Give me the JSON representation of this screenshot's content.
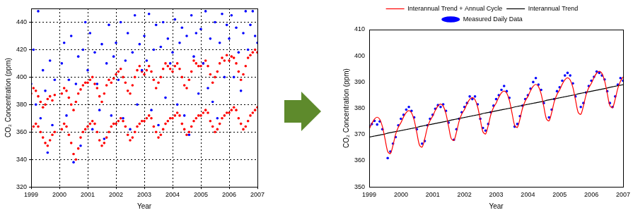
{
  "chart_data": [
    {
      "type": "scatter",
      "x_label": "Year",
      "y_label": "CO₂ Concentration (ppm)",
      "x": [
        1999,
        1999.083,
        1999.167,
        1999.25,
        1999.333,
        1999.417,
        1999.5,
        1999.583,
        1999.667,
        1999.75,
        1999.833,
        1999.917,
        2000,
        2000.083,
        2000.167,
        2000.25,
        2000.333,
        2000.417,
        2000.5,
        2000.583,
        2000.667,
        2000.75,
        2000.833,
        2000.917,
        2001,
        2001.083,
        2001.167,
        2001.25,
        2001.333,
        2001.417,
        2001.5,
        2001.583,
        2001.667,
        2001.75,
        2001.833,
        2001.917,
        2002,
        2002.083,
        2002.167,
        2002.25,
        2002.333,
        2002.417,
        2002.5,
        2002.583,
        2002.667,
        2002.75,
        2002.833,
        2002.917,
        2003,
        2003.083,
        2003.167,
        2003.25,
        2003.333,
        2003.417,
        2003.5,
        2003.583,
        2003.667,
        2003.75,
        2003.833,
        2003.917,
        2004,
        2004.083,
        2004.167,
        2004.25,
        2004.333,
        2004.417,
        2004.5,
        2004.583,
        2004.667,
        2004.75,
        2004.833,
        2004.917,
        2005,
        2005.083,
        2005.167,
        2005.25,
        2005.333,
        2005.417,
        2005.5,
        2005.583,
        2005.667,
        2005.75,
        2005.833,
        2005.917,
        2006,
        2006.083,
        2006.167,
        2006.25,
        2006.333,
        2006.417,
        2006.5,
        2006.583,
        2006.667,
        2006.75,
        2006.833,
        2006.917,
        2007
      ],
      "series": [
        {
          "color": "#0000ff",
          "marker": "circle",
          "values": [
            395,
            420,
            380,
            448,
            370,
            405,
            390,
            345,
            412,
            365,
            398,
            null,
            null,
            410,
            425,
            372,
            398,
            430,
            338,
            395,
            415,
            350,
            420,
            440,
            405,
            432,
            362,
            418,
            395,
            376,
            424,
            355,
            410,
            438,
            372,
            415,
            425,
            398,
            440,
            370,
            412,
            432,
            362,
            418,
            445,
            380,
            424,
            405,
            430,
            412,
            446,
            376,
            420,
            438,
            365,
            422,
            440,
            385,
            428,
            410,
            418,
            442,
            380,
            425,
            436,
            372,
            430,
            358,
            445,
            415,
            432,
            388,
            435,
            410,
            448,
            392,
            428,
            382,
            440,
            370,
            425,
            446,
            400,
            438,
            428,
            445,
            400,
            436,
            418,
            390,
            432,
            448,
            420,
            438,
            448,
            430,
            425
          ]
        },
        {
          "color": "#ff0000",
          "marker": "circle",
          "values": [
            388,
            392,
            390,
            386,
            382,
            378,
            380,
            384,
            386,
            383,
            387,
            null,
            null,
            388,
            392,
            390,
            385,
            380,
            376,
            382,
            388,
            391,
            394,
            396,
            396,
            398,
            400,
            395,
            392,
            386,
            382,
            388,
            394,
            398,
            396,
            399,
            402,
            404,
            406,
            400,
            396,
            390,
            388,
            394,
            400,
            405,
            408,
            404,
            402,
            405,
            408,
            404,
            398,
            392,
            396,
            400,
            406,
            410,
            408,
            406,
            404,
            408,
            410,
            406,
            400,
            394,
            392,
            398,
            404,
            412,
            410,
            408,
            408,
            410,
            412,
            408,
            402,
            396,
            400,
            404,
            410,
            414,
            412,
            416,
            412,
            415,
            414,
            410,
            404,
            398,
            402,
            408,
            414,
            416,
            418,
            420,
            418
          ]
        },
        {
          "color": "#ff0000",
          "marker": "circle",
          "values": [
            362,
            364,
            366,
            364,
            360,
            356,
            352,
            350,
            354,
            358,
            360,
            null,
            null,
            362,
            366,
            364,
            358,
            352,
            344,
            340,
            348,
            356,
            360,
            362,
            364,
            366,
            368,
            366,
            360,
            354,
            350,
            352,
            356,
            360,
            364,
            366,
            366,
            368,
            370,
            368,
            364,
            358,
            354,
            356,
            360,
            364,
            366,
            368,
            368,
            370,
            372,
            370,
            364,
            360,
            356,
            358,
            362,
            366,
            368,
            370,
            370,
            372,
            374,
            372,
            366,
            362,
            358,
            360,
            364,
            368,
            370,
            372,
            372,
            374,
            376,
            374,
            368,
            364,
            360,
            362,
            366,
            370,
            372,
            374,
            374,
            376,
            378,
            376,
            370,
            366,
            362,
            364,
            368,
            372,
            374,
            376,
            378
          ]
        }
      ],
      "xlim": [
        1999,
        2007
      ],
      "xticks": [
        1999,
        2000,
        2001,
        2002,
        2003,
        2004,
        2005,
        2006,
        2007
      ],
      "ylim": [
        320,
        450
      ],
      "yticks": [
        320,
        340,
        360,
        380,
        400,
        420,
        440
      ],
      "grid": true
    },
    {
      "type": "scatter",
      "x_label": "Year",
      "y_label": "CO₂ Concentration (ppm)",
      "x": [
        1999,
        1999.083,
        1999.167,
        1999.25,
        1999.333,
        1999.417,
        1999.5,
        1999.583,
        1999.667,
        1999.75,
        1999.833,
        1999.917,
        2000,
        2000.083,
        2000.167,
        2000.25,
        2000.333,
        2000.417,
        2000.5,
        2000.583,
        2000.667,
        2000.75,
        2000.833,
        2000.917,
        2001,
        2001.083,
        2001.167,
        2001.25,
        2001.333,
        2001.417,
        2001.5,
        2001.583,
        2001.667,
        2001.75,
        2001.833,
        2001.917,
        2002,
        2002.083,
        2002.167,
        2002.25,
        2002.333,
        2002.417,
        2002.5,
        2002.583,
        2002.667,
        2002.75,
        2002.833,
        2002.917,
        2003,
        2003.083,
        2003.167,
        2003.25,
        2003.333,
        2003.417,
        2003.5,
        2003.583,
        2003.667,
        2003.75,
        2003.833,
        2003.917,
        2004,
        2004.083,
        2004.167,
        2004.25,
        2004.333,
        2004.417,
        2004.5,
        2004.583,
        2004.667,
        2004.75,
        2004.833,
        2004.917,
        2005,
        2005.083,
        2005.167,
        2005.25,
        2005.333,
        2005.417,
        2005.5,
        2005.583,
        2005.667,
        2005.75,
        2005.833,
        2005.917,
        2006,
        2006.083,
        2006.167,
        2006.25,
        2006.333,
        2006.417,
        2006.5,
        2006.583,
        2006.667,
        2006.75,
        2006.833,
        2006.917,
        2007
      ],
      "series": [
        {
          "name": "Measured Daily Data",
          "type": "scatter",
          "color": "#0000ff",
          "marker": "circle",
          "values": [
            373.5,
            374.0,
            375.2,
            373.8,
            375.0,
            372.0,
            null,
            361.0,
            363.5,
            366.5,
            369.0,
            373.5,
            376.0,
            377.5,
            379.5,
            380.5,
            379.0,
            376.5,
            372.0,
            null,
            366.5,
            367.5,
            373.5,
            376.0,
            377.5,
            379.8,
            381.2,
            380.5,
            381.5,
            379.0,
            374.5,
            null,
            368.0,
            372.0,
            376.0,
            378.5,
            380.5,
            382.0,
            384.5,
            383.5,
            384.5,
            381.5,
            376.0,
            372.5,
            371.5,
            374.0,
            378.5,
            381.0,
            383.5,
            385.0,
            387.0,
            388.5,
            386.5,
            384.0,
            null,
            373.0,
            374.0,
            377.0,
            381.0,
            383.5,
            385.0,
            387.5,
            390.0,
            391.5,
            389.0,
            387.0,
            382.0,
            null,
            376.5,
            379.5,
            383.5,
            386.5,
            388.0,
            390.5,
            392.5,
            393.5,
            392.5,
            389.5,
            384.5,
            null,
            380.5,
            382.0,
            386.0,
            388.5,
            390.5,
            392.0,
            394.0,
            393.5,
            392.5,
            391.0,
            386.5,
            382.0,
            380.5,
            384.5,
            389.0,
            391.5,
            390.5
          ]
        },
        {
          "name": "Interannual Trend + Annual Cycle",
          "type": "line",
          "color": "#ff0000",
          "line_style": "solid",
          "values": [
            372.0,
            374.2,
            375.9,
            376.6,
            375.8,
            373.0,
            368.2,
            363.5,
            362.7,
            365.9,
            370.1,
            372.8,
            374.5,
            376.7,
            378.4,
            379.1,
            378.3,
            375.5,
            370.7,
            366.0,
            365.2,
            368.4,
            372.6,
            375.3,
            377.0,
            379.2,
            380.9,
            381.6,
            380.8,
            378.0,
            373.2,
            368.5,
            367.7,
            370.9,
            375.1,
            377.8,
            379.5,
            381.7,
            383.4,
            384.1,
            383.3,
            380.5,
            375.7,
            371.0,
            370.2,
            373.4,
            377.6,
            380.3,
            382.0,
            384.2,
            385.9,
            386.6,
            385.8,
            383.0,
            378.2,
            373.5,
            372.7,
            375.9,
            380.1,
            382.8,
            384.5,
            386.7,
            388.4,
            389.1,
            388.3,
            385.5,
            380.7,
            376.0,
            375.2,
            378.4,
            382.6,
            385.3,
            387.0,
            389.2,
            390.9,
            391.6,
            390.8,
            388.0,
            383.2,
            378.5,
            377.7,
            380.9,
            385.1,
            387.8,
            389.5,
            391.7,
            393.4,
            394.1,
            393.3,
            390.5,
            385.7,
            381.0,
            380.2,
            383.4,
            387.6,
            390.3,
            392.0
          ]
        },
        {
          "name": "Interannual Trend",
          "type": "line",
          "color": "#000000",
          "line_style": "solid",
          "values": [
            369.0,
            369.2,
            369.4,
            369.6,
            369.8,
            370.0,
            370.2,
            370.5,
            370.7,
            370.9,
            371.1,
            371.3,
            371.5,
            371.7,
            371.9,
            372.1,
            372.3,
            372.5,
            372.7,
            373.0,
            373.2,
            373.4,
            373.6,
            373.8,
            374.0,
            374.2,
            374.4,
            374.6,
            374.8,
            375.0,
            375.2,
            375.5,
            375.7,
            375.9,
            376.1,
            376.3,
            376.5,
            376.7,
            376.9,
            377.1,
            377.3,
            377.5,
            377.7,
            378.0,
            378.2,
            378.4,
            378.6,
            378.8,
            379.0,
            379.2,
            379.4,
            379.6,
            379.8,
            380.0,
            380.2,
            380.5,
            380.7,
            380.9,
            381.1,
            381.3,
            381.5,
            381.7,
            381.9,
            382.1,
            382.3,
            382.5,
            382.7,
            383.0,
            383.2,
            383.4,
            383.6,
            383.8,
            384.0,
            384.2,
            384.4,
            384.6,
            384.8,
            385.0,
            385.2,
            385.5,
            385.7,
            385.9,
            386.1,
            386.3,
            386.5,
            386.7,
            386.9,
            387.1,
            387.3,
            387.5,
            387.7,
            388.0,
            388.2,
            388.4,
            388.6,
            388.8,
            389.0
          ]
        }
      ],
      "xlim": [
        1999,
        2007
      ],
      "xticks": [
        1999,
        2000,
        2001,
        2002,
        2003,
        2004,
        2005,
        2006,
        2007
      ],
      "ylim": [
        350,
        410
      ],
      "yticks": [
        350,
        360,
        370,
        380,
        390,
        400,
        410
      ],
      "grid": false,
      "legend": "top"
    }
  ]
}
